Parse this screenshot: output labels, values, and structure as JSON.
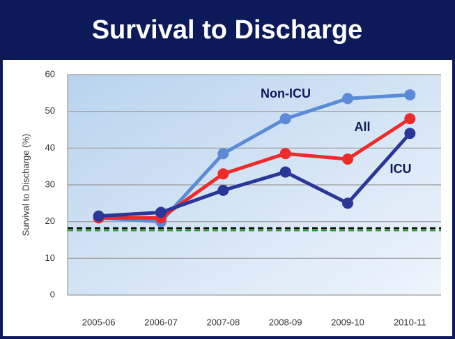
{
  "chart_data": {
    "type": "line",
    "title": "Survival to Discharge",
    "y_label": "Survival to Discharge (%)",
    "categories": [
      "2005-06",
      "2006-07",
      "2007-08",
      "2008-09",
      "2009-10",
      "2010-11"
    ],
    "series": [
      {
        "name": "Non-ICU",
        "color": "#5b8ad6",
        "values": [
          21,
          20,
          38.5,
          48,
          53.5,
          54.5
        ]
      },
      {
        "name": "All",
        "color": "#ee2a2a",
        "values": [
          21,
          21,
          33,
          38.5,
          37,
          48
        ]
      },
      {
        "name": "ICU",
        "color": "#2b3699",
        "values": [
          21.5,
          22.5,
          28.5,
          33.5,
          25,
          44
        ]
      }
    ],
    "reference_lines": [
      {
        "value": 18.2,
        "color": "#000000"
      },
      {
        "value": 17.6,
        "color": "#2a9a2a"
      }
    ],
    "ylim": [
      0,
      60
    ],
    "yticks": [
      0,
      10,
      20,
      30,
      40,
      50,
      60
    ],
    "grid": true
  }
}
